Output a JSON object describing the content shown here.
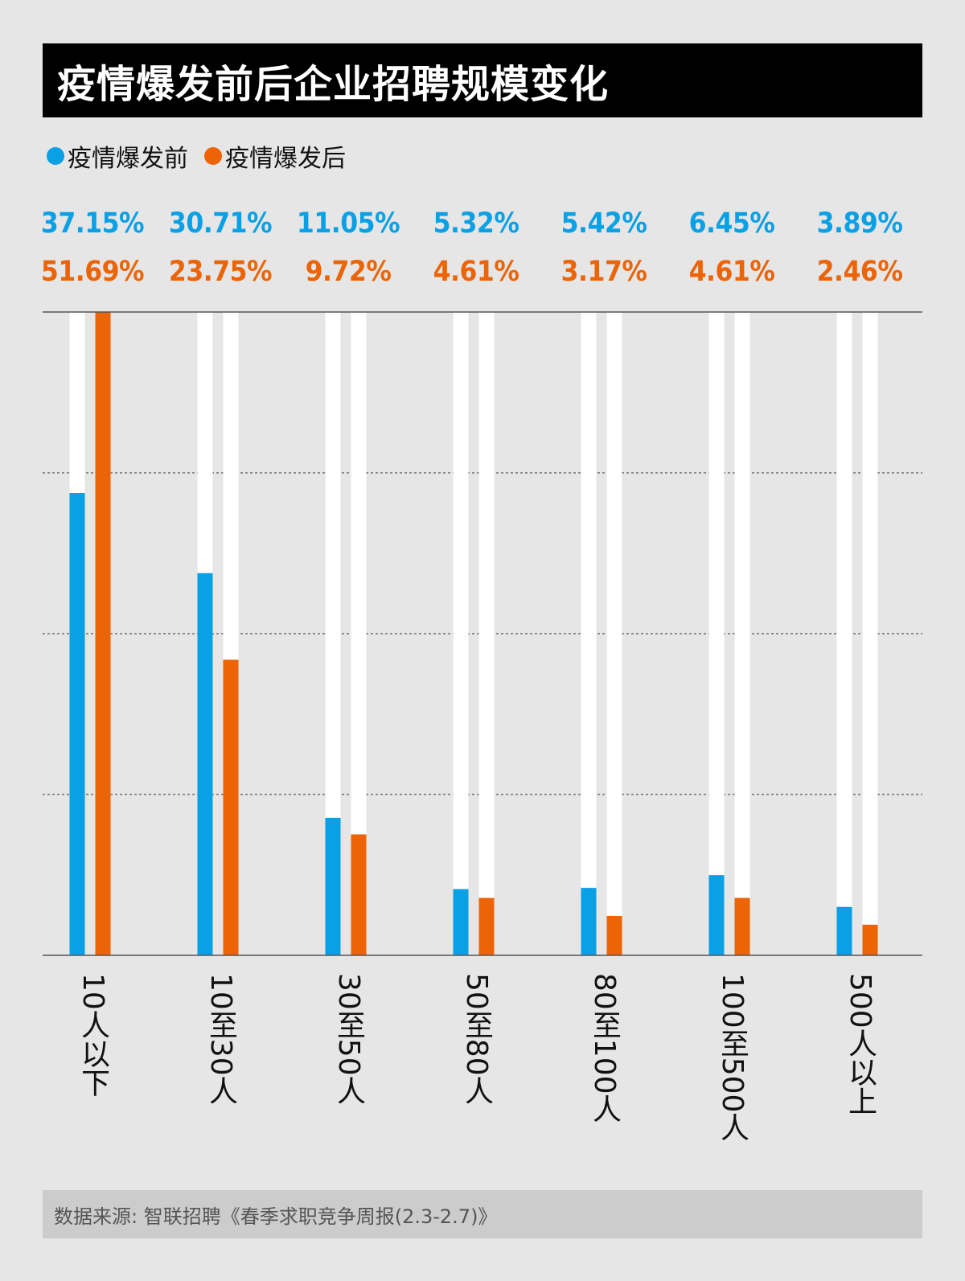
{
  "title": "疫情爆发前后企业招聘规模变化",
  "legend": {
    "before": "疫情爆发前",
    "after": "疫情爆发后"
  },
  "colors": {
    "before": "#0aa0e6",
    "after": "#ec6405",
    "track": "#ffffff",
    "background": "#e6e6e6"
  },
  "chart_data": {
    "type": "bar",
    "categories": [
      "10人以下",
      "10至30人",
      "30至50人",
      "50至80人",
      "80至100人",
      "100至500人",
      "500人以上"
    ],
    "series": [
      {
        "name": "疫情爆发前",
        "values": [
          37.15,
          30.71,
          11.05,
          5.32,
          5.42,
          6.45,
          3.89
        ],
        "labels": [
          "37.15%",
          "30.71%",
          "11.05%",
          "5.32%",
          "5.42%",
          "6.45%",
          "3.89%"
        ]
      },
      {
        "name": "疫情爆发后",
        "values": [
          51.69,
          23.75,
          9.72,
          4.61,
          3.17,
          4.61,
          2.46
        ],
        "labels": [
          "51.69%",
          "23.75%",
          "9.72%",
          "4.61%",
          "3.17%",
          "4.61%",
          "2.46%"
        ]
      }
    ],
    "ylim": [
      0,
      51.69
    ],
    "grid": true,
    "legend_position": "top-left"
  },
  "source": "数据来源: 智联招聘《春季求职竞争周报(2.3-2.7)》"
}
